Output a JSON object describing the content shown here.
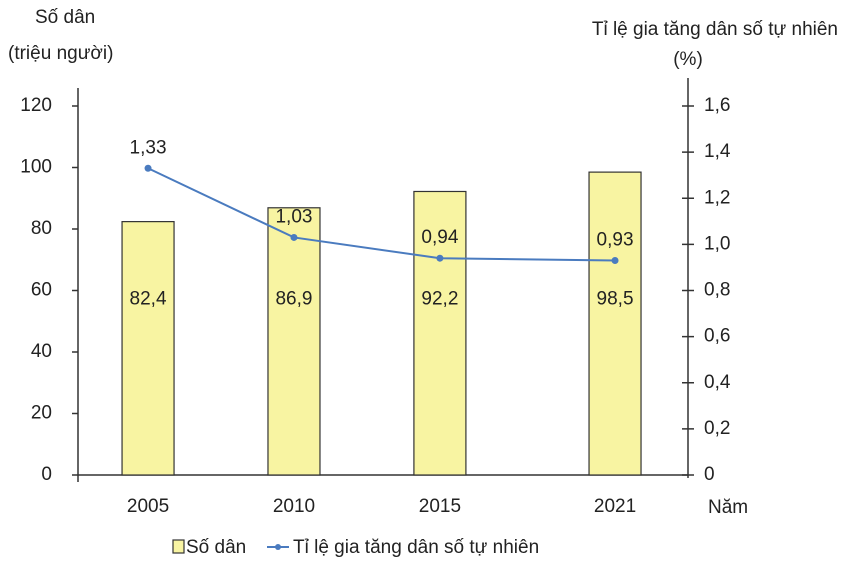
{
  "chart_data": {
    "type": "bar_line",
    "y_axis_label": [
      "Số dân",
      "(triệu người)"
    ],
    "y2_axis_label": [
      "Tỉ lệ gia tăng dân số tự nhiên",
      "(%)"
    ],
    "x_axis_label": "Năm",
    "x": [
      2005,
      2010,
      2015,
      2021
    ],
    "xlim": [
      2002.6,
      2023.5
    ],
    "series": [
      {
        "name": "Số dân",
        "type": "bar",
        "color": "#f8f4a2",
        "values": [
          82.4,
          86.9,
          92.2,
          98.5
        ],
        "value_labels": [
          "82,4",
          "86,9",
          "92,2",
          "98,5"
        ]
      },
      {
        "name": "Tỉ lệ gia tăng dân số tự nhiên",
        "type": "line",
        "axis": "y2",
        "color": "#4a7bbf",
        "values": [
          1.33,
          1.03,
          0.94,
          0.93
        ],
        "value_labels": [
          "1,33",
          "1,03",
          "0,94",
          "0,93"
        ]
      }
    ],
    "ylim": [
      0,
      120
    ],
    "yticks": [
      0,
      20,
      40,
      60,
      80,
      100,
      120
    ],
    "y2lim": [
      0,
      1.6
    ],
    "y2ticks": [
      0,
      {
        "value": 0.2,
        "label": "0,2"
      },
      {
        "value": 0.4,
        "label": "0,4"
      },
      {
        "value": 0.6,
        "label": "0,6"
      },
      {
        "value": 0.8,
        "label": "0,8"
      },
      {
        "value": 1,
        "label": "1,0"
      },
      {
        "value": 1.2,
        "label": "1,2"
      },
      {
        "value": 1.4,
        "label": "1,4"
      },
      {
        "value": 1.6,
        "label": "1,6"
      }
    ]
  }
}
